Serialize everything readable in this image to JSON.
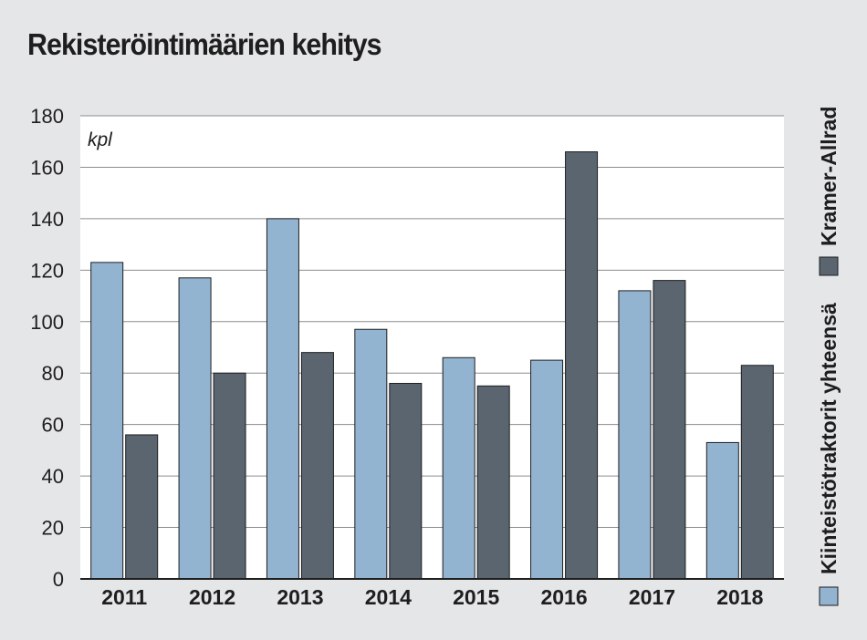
{
  "chart_data": {
    "type": "bar",
    "title": "Rekisteröintimäärien kehitys",
    "unit": "kpl",
    "categories": [
      "2011",
      "2012",
      "2013",
      "2014",
      "2015",
      "2016",
      "2017",
      "2018"
    ],
    "series": [
      {
        "name": "Kiinteistötraktorit yhteensä",
        "color": "#93b4d1",
        "values": [
          123,
          117,
          140,
          97,
          86,
          85,
          112,
          53
        ]
      },
      {
        "name": "Kramer-Allrad",
        "color": "#5a6570",
        "values": [
          56,
          80,
          88,
          76,
          75,
          166,
          116,
          83
        ]
      }
    ],
    "ylim": [
      0,
      180
    ],
    "yticks": [
      0,
      20,
      40,
      60,
      80,
      100,
      120,
      140,
      160,
      180
    ],
    "grid": true,
    "legend_position": "right, vertical"
  }
}
